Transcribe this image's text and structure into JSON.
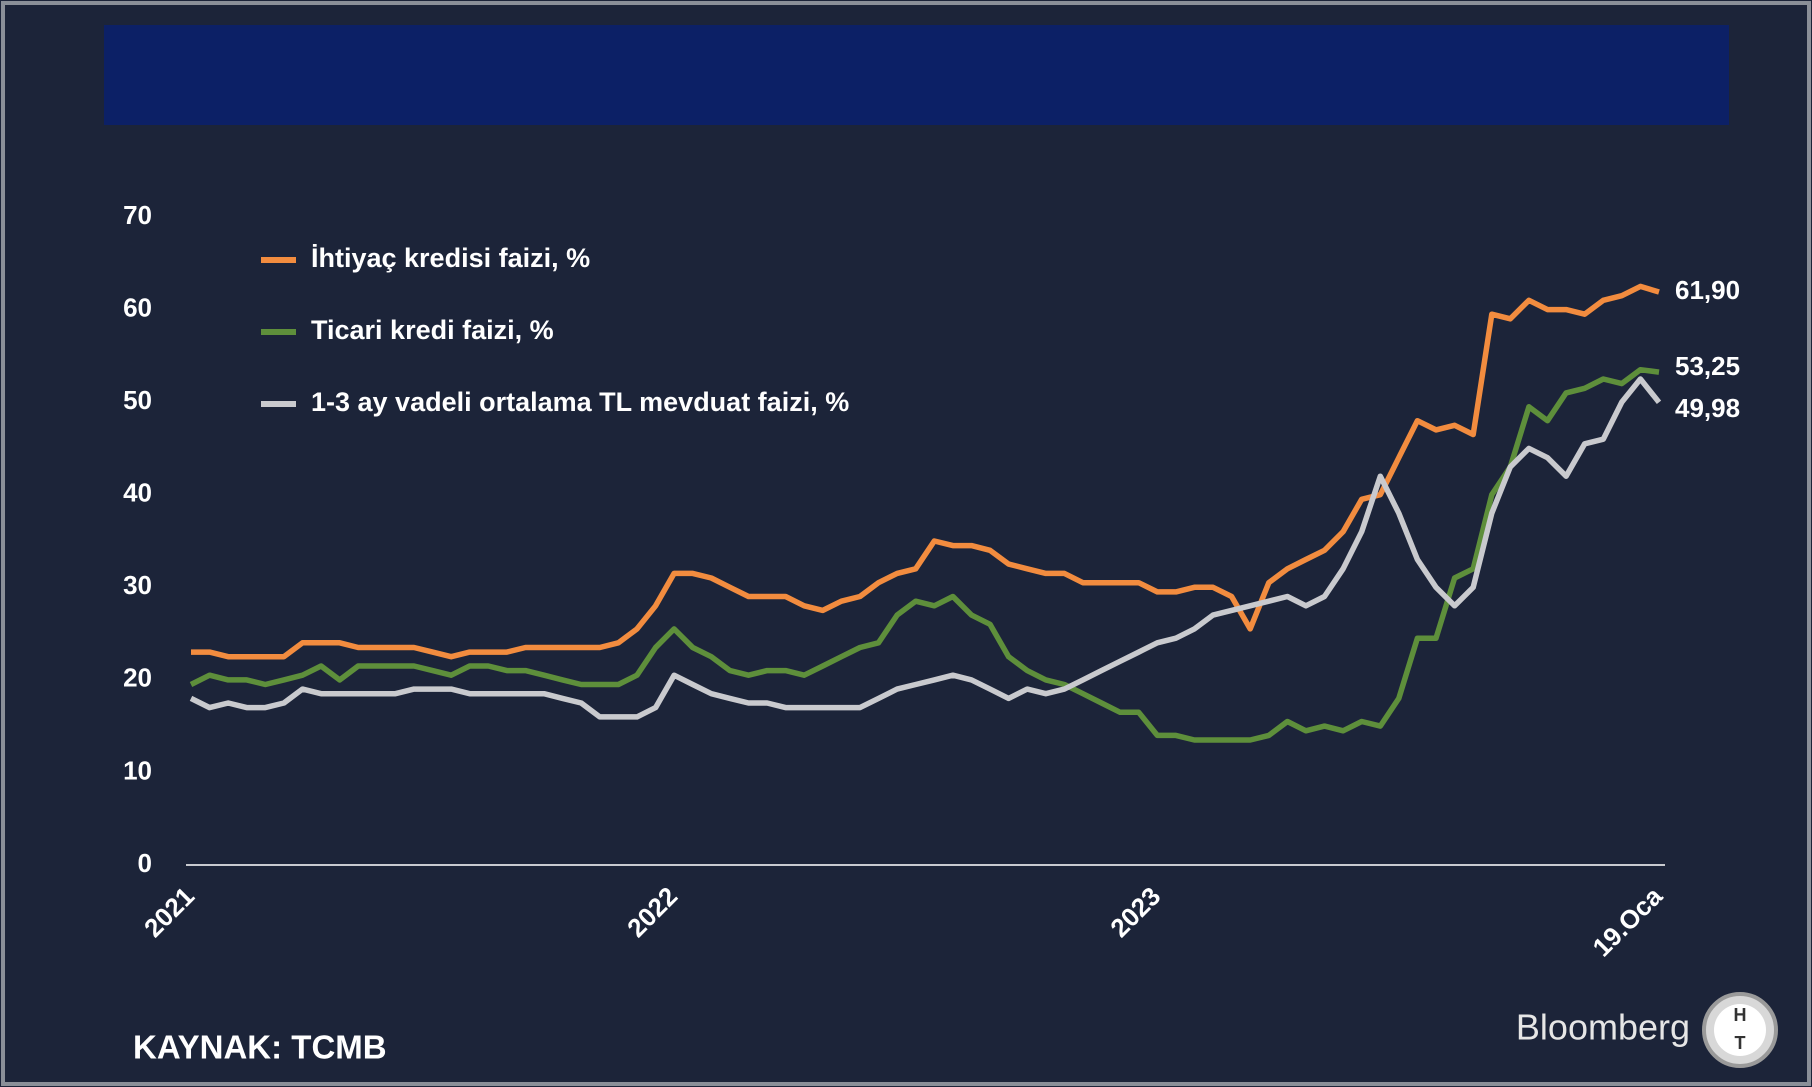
{
  "chart_data": {
    "type": "line",
    "source": "KAYNAK: TCMB",
    "brand": "Bloomberg",
    "logo": [
      "H",
      "T"
    ],
    "categories": [
      "2021",
      null,
      null,
      null,
      null,
      null,
      null,
      null,
      null,
      null,
      null,
      null,
      null,
      null,
      null,
      null,
      null,
      null,
      null,
      null,
      null,
      null,
      null,
      null,
      null,
      null,
      "2022",
      null,
      null,
      null,
      null,
      null,
      null,
      null,
      null,
      null,
      null,
      null,
      null,
      null,
      null,
      null,
      null,
      null,
      null,
      null,
      null,
      null,
      null,
      null,
      null,
      null,
      "2023",
      null,
      null,
      null,
      null,
      null,
      null,
      null,
      null,
      null,
      null,
      null,
      null,
      null,
      null,
      null,
      null,
      null,
      null,
      null,
      null,
      null,
      null,
      null,
      null,
      null,
      null,
      "19.Oca"
    ],
    "ylim": [
      0,
      70
    ],
    "yticks": [
      0,
      10,
      20,
      30,
      40,
      50,
      60,
      70
    ],
    "grid": false,
    "legend": "top-left",
    "series": [
      {
        "name": "İhtiyaç kredisi faizi, %",
        "color": "#f28c3f",
        "values": [
          23,
          23,
          22.5,
          22.5,
          22.5,
          22.5,
          24,
          24,
          24,
          23.5,
          23.5,
          23.5,
          23.5,
          23,
          22.5,
          23,
          23,
          23,
          23.5,
          23.5,
          23.5,
          23.5,
          23.5,
          24,
          25.5,
          28,
          31.5,
          31.5,
          31,
          30,
          29,
          29,
          29,
          28,
          27.5,
          28.5,
          29,
          30.5,
          31.5,
          32,
          35,
          34.5,
          34.5,
          34,
          32.5,
          32,
          31.5,
          31.5,
          30.5,
          30.5,
          30.5,
          30.5,
          29.5,
          29.5,
          30,
          30,
          29,
          25.5,
          30.5,
          32,
          33,
          34,
          36,
          39.5,
          40,
          44,
          48,
          47,
          47.5,
          46.5,
          59.5,
          59,
          61,
          60,
          60,
          59.5,
          61,
          61.5,
          62.5,
          61.9
        ],
        "value_labels": [
          null,
          null,
          null,
          null,
          null,
          null,
          null,
          null,
          null,
          null,
          null,
          null,
          null,
          null,
          null,
          null,
          null,
          null,
          null,
          null,
          null,
          null,
          null,
          null,
          null,
          null,
          null,
          null,
          null,
          null,
          null,
          null,
          null,
          null,
          null,
          null,
          null,
          null,
          null,
          null,
          null,
          null,
          null,
          null,
          null,
          null,
          null,
          null,
          null,
          null,
          null,
          null,
          null,
          null,
          null,
          null,
          null,
          null,
          null,
          null,
          null,
          null,
          null,
          null,
          null,
          null,
          null,
          null,
          null,
          null,
          null,
          null,
          null,
          null,
          null,
          null,
          null,
          null,
          null,
          "61,90"
        ]
      },
      {
        "name": "Ticari kredi faizi, %",
        "color": "#5e8f3b",
        "values": [
          19.5,
          20.5,
          20,
          20,
          19.5,
          20,
          20.5,
          21.5,
          20,
          21.5,
          21.5,
          21.5,
          21.5,
          21,
          20.5,
          21.5,
          21.5,
          21,
          21,
          20.5,
          20,
          19.5,
          19.5,
          19.5,
          20.5,
          23.5,
          25.5,
          23.5,
          22.5,
          21,
          20.5,
          21,
          21,
          20.5,
          21.5,
          22.5,
          23.5,
          24,
          27,
          28.5,
          28,
          29,
          27,
          26,
          22.5,
          21,
          20,
          19.5,
          18.5,
          17.5,
          16.5,
          16.5,
          14,
          14,
          13.5,
          13.5,
          13.5,
          13.5,
          14,
          15.5,
          14.5,
          15,
          14.5,
          15.5,
          15,
          18,
          24.5,
          24.5,
          31,
          32,
          40,
          43,
          49.5,
          48,
          51,
          51.5,
          52.5,
          52,
          53.5,
          53.25
        ],
        "value_labels": [
          null,
          null,
          null,
          null,
          null,
          null,
          null,
          null,
          null,
          null,
          null,
          null,
          null,
          null,
          null,
          null,
          null,
          null,
          null,
          null,
          null,
          null,
          null,
          null,
          null,
          null,
          null,
          null,
          null,
          null,
          null,
          null,
          null,
          null,
          null,
          null,
          null,
          null,
          null,
          null,
          null,
          null,
          null,
          null,
          null,
          null,
          null,
          null,
          null,
          null,
          null,
          null,
          null,
          null,
          null,
          null,
          null,
          null,
          null,
          null,
          null,
          null,
          null,
          null,
          null,
          null,
          null,
          null,
          null,
          null,
          null,
          null,
          null,
          null,
          null,
          null,
          null,
          null,
          null,
          "53,25"
        ]
      },
      {
        "name": "1-3 ay vadeli ortalama TL mevduat faizi, %",
        "color": "#c9cace",
        "values": [
          18,
          17,
          17.5,
          17,
          17,
          17.5,
          19,
          18.5,
          18.5,
          18.5,
          18.5,
          18.5,
          19,
          19,
          19,
          18.5,
          18.5,
          18.5,
          18.5,
          18.5,
          18,
          17.5,
          16,
          16,
          16,
          17,
          20.5,
          19.5,
          18.5,
          18,
          17.5,
          17.5,
          17,
          17,
          17,
          17,
          17,
          18,
          19,
          19.5,
          20,
          20.5,
          20,
          19,
          18,
          19,
          18.5,
          19,
          20,
          21,
          22,
          23,
          24,
          24.5,
          25.5,
          27,
          27.5,
          28,
          28.5,
          29,
          28,
          29,
          32,
          36,
          42,
          38,
          33,
          30,
          28,
          30,
          38,
          43,
          45,
          44,
          42,
          45.5,
          46,
          50,
          52.5,
          49.98
        ],
        "value_labels": [
          null,
          null,
          null,
          null,
          null,
          null,
          null,
          null,
          null,
          null,
          null,
          null,
          null,
          null,
          null,
          null,
          null,
          null,
          null,
          null,
          null,
          null,
          null,
          null,
          null,
          null,
          null,
          null,
          null,
          null,
          null,
          null,
          null,
          null,
          null,
          null,
          null,
          null,
          null,
          null,
          null,
          null,
          null,
          null,
          null,
          null,
          null,
          null,
          null,
          null,
          null,
          null,
          null,
          null,
          null,
          null,
          null,
          null,
          null,
          null,
          null,
          null,
          null,
          null,
          null,
          null,
          null,
          null,
          null,
          null,
          null,
          null,
          null,
          null,
          null,
          null,
          null,
          null,
          null,
          "49,98"
        ]
      }
    ]
  }
}
